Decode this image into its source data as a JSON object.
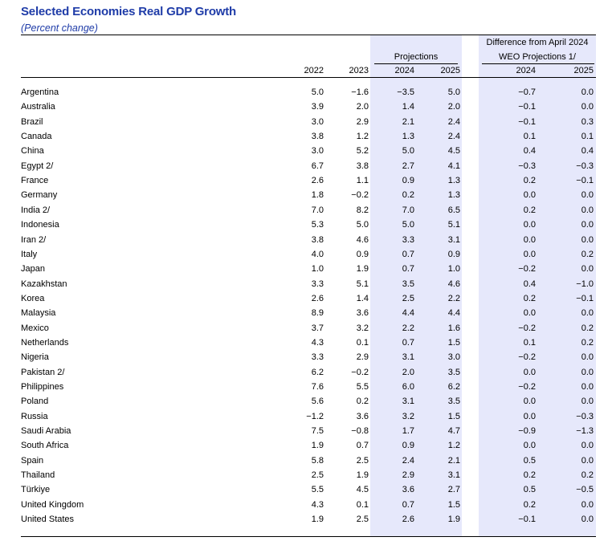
{
  "title": "Selected Economies Real GDP Growth",
  "subtitle": "(Percent change)",
  "header": {
    "projections": "Projections",
    "difference_line1": "Difference from April 2024",
    "difference_line2": "WEO Projections 1/",
    "years": [
      "2022",
      "2023",
      "2024",
      "2025",
      "2024",
      "2025"
    ]
  },
  "rows": [
    {
      "country": "Argentina",
      "values": [
        "5.0",
        "−1.6",
        "−3.5",
        "5.0",
        "−0.7",
        "0.0"
      ]
    },
    {
      "country": "Australia",
      "values": [
        "3.9",
        "2.0",
        "1.4",
        "2.0",
        "−0.1",
        "0.0"
      ]
    },
    {
      "country": "Brazil",
      "values": [
        "3.0",
        "2.9",
        "2.1",
        "2.4",
        "−0.1",
        "0.3"
      ]
    },
    {
      "country": "Canada",
      "values": [
        "3.8",
        "1.2",
        "1.3",
        "2.4",
        "0.1",
        "0.1"
      ]
    },
    {
      "country": "China",
      "values": [
        "3.0",
        "5.2",
        "5.0",
        "4.5",
        "0.4",
        "0.4"
      ]
    },
    {
      "country": "Egypt 2/",
      "values": [
        "6.7",
        "3.8",
        "2.7",
        "4.1",
        "−0.3",
        "−0.3"
      ]
    },
    {
      "country": "France",
      "values": [
        "2.6",
        "1.1",
        "0.9",
        "1.3",
        "0.2",
        "−0.1"
      ]
    },
    {
      "country": "Germany",
      "values": [
        "1.8",
        "−0.2",
        "0.2",
        "1.3",
        "0.0",
        "0.0"
      ]
    },
    {
      "country": "India 2/",
      "values": [
        "7.0",
        "8.2",
        "7.0",
        "6.5",
        "0.2",
        "0.0"
      ]
    },
    {
      "country": "Indonesia",
      "values": [
        "5.3",
        "5.0",
        "5.0",
        "5.1",
        "0.0",
        "0.0"
      ]
    },
    {
      "country": "Iran 2/",
      "values": [
        "3.8",
        "4.6",
        "3.3",
        "3.1",
        "0.0",
        "0.0"
      ]
    },
    {
      "country": "Italy",
      "values": [
        "4.0",
        "0.9",
        "0.7",
        "0.9",
        "0.0",
        "0.2"
      ]
    },
    {
      "country": "Japan",
      "values": [
        "1.0",
        "1.9",
        "0.7",
        "1.0",
        "−0.2",
        "0.0"
      ]
    },
    {
      "country": "Kazakhstan",
      "values": [
        "3.3",
        "5.1",
        "3.5",
        "4.6",
        "0.4",
        "−1.0"
      ]
    },
    {
      "country": "Korea",
      "values": [
        "2.6",
        "1.4",
        "2.5",
        "2.2",
        "0.2",
        "−0.1"
      ]
    },
    {
      "country": "Malaysia",
      "values": [
        "8.9",
        "3.6",
        "4.4",
        "4.4",
        "0.0",
        "0.0"
      ]
    },
    {
      "country": "Mexico",
      "values": [
        "3.7",
        "3.2",
        "2.2",
        "1.6",
        "−0.2",
        "0.2"
      ]
    },
    {
      "country": "Netherlands",
      "values": [
        "4.3",
        "0.1",
        "0.7",
        "1.5",
        "0.1",
        "0.2"
      ]
    },
    {
      "country": "Nigeria",
      "values": [
        "3.3",
        "2.9",
        "3.1",
        "3.0",
        "−0.2",
        "0.0"
      ]
    },
    {
      "country": "Pakistan 2/",
      "values": [
        "6.2",
        "−0.2",
        "2.0",
        "3.5",
        "0.0",
        "0.0"
      ]
    },
    {
      "country": "Philippines",
      "values": [
        "7.6",
        "5.5",
        "6.0",
        "6.2",
        "−0.2",
        "0.0"
      ]
    },
    {
      "country": "Poland",
      "values": [
        "5.6",
        "0.2",
        "3.1",
        "3.5",
        "0.0",
        "0.0"
      ]
    },
    {
      "country": "Russia",
      "values": [
        "−1.2",
        "3.6",
        "3.2",
        "1.5",
        "0.0",
        "−0.3"
      ]
    },
    {
      "country": "Saudi Arabia",
      "values": [
        "7.5",
        "−0.8",
        "1.7",
        "4.7",
        "−0.9",
        "−1.3"
      ]
    },
    {
      "country": "South Africa",
      "values": [
        "1.9",
        "0.7",
        "0.9",
        "1.2",
        "0.0",
        "0.0"
      ]
    },
    {
      "country": "Spain",
      "values": [
        "5.8",
        "2.5",
        "2.4",
        "2.1",
        "0.5",
        "0.0"
      ]
    },
    {
      "country": "Thailand",
      "values": [
        "2.5",
        "1.9",
        "2.9",
        "3.1",
        "0.2",
        "0.2"
      ]
    },
    {
      "country": "Türkiye",
      "values": [
        "5.5",
        "4.5",
        "3.6",
        "2.7",
        "0.5",
        "−0.5"
      ]
    },
    {
      "country": "United Kingdom",
      "values": [
        "4.3",
        "0.1",
        "0.7",
        "1.5",
        "0.2",
        "0.0"
      ]
    },
    {
      "country": "United States",
      "values": [
        "1.9",
        "2.5",
        "2.6",
        "1.9",
        "−0.1",
        "0.0"
      ]
    }
  ],
  "colors": {
    "title": "#1f3ca8",
    "shading": "#e6e8fb",
    "rule": "#000000"
  }
}
